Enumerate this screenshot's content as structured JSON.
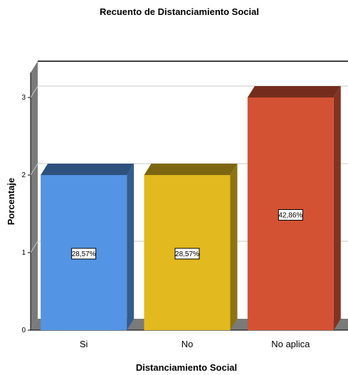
{
  "chart_data": {
    "type": "bar",
    "title": "Recuento de Distanciamiento Social",
    "xlabel": "Distanciamiento Social",
    "ylabel": "Porcentaje",
    "categories": [
      "Si",
      "No",
      "No aplica"
    ],
    "values": [
      2,
      2,
      3
    ],
    "data_labels": [
      "28,57%",
      "28,57%",
      "42,86%"
    ],
    "colors": [
      "#5394E4",
      "#E2B91E",
      "#D35233"
    ],
    "yticks": [
      0,
      1,
      2,
      3
    ],
    "ylim": [
      0,
      3.3
    ],
    "grid": true,
    "style": "3d"
  }
}
